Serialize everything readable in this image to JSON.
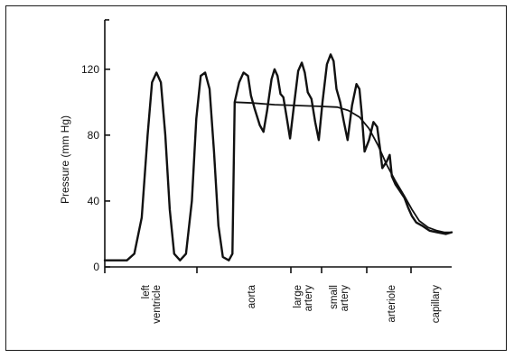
{
  "chart_data": {
    "type": "line",
    "title": "",
    "xlabel": "",
    "ylabel": "Pressure (mm Hg)",
    "ylim": [
      0,
      150
    ],
    "yticks": [
      0,
      40,
      80,
      120
    ],
    "grid": false,
    "regions": [
      {
        "label_lines": [
          "left",
          "ventricle"
        ]
      },
      {
        "label_lines": [
          "aorta"
        ]
      },
      {
        "label_lines": [
          "large",
          "artery"
        ]
      },
      {
        "label_lines": [
          "small",
          "artery"
        ]
      },
      {
        "label_lines": [
          "arteriole"
        ]
      },
      {
        "label_lines": [
          "capillary"
        ]
      }
    ],
    "series": [
      {
        "values": [
          [
            0,
            4
          ],
          [
            3,
            4
          ],
          [
            4,
            8
          ],
          [
            5,
            30
          ],
          [
            5.8,
            80
          ],
          [
            6.4,
            112
          ],
          [
            7,
            118
          ],
          [
            7.6,
            112
          ],
          [
            8.2,
            80
          ],
          [
            8.8,
            35
          ],
          [
            9.4,
            8
          ],
          [
            10.2,
            4
          ],
          [
            11,
            8
          ],
          [
            11.8,
            40
          ],
          [
            12.4,
            90
          ],
          [
            13,
            116
          ],
          [
            13.6,
            118
          ],
          [
            14.2,
            108
          ],
          [
            14.8,
            70
          ],
          [
            15.4,
            25
          ],
          [
            16,
            6
          ],
          [
            16.8,
            4
          ],
          [
            17.3,
            8
          ],
          [
            17.6,
            100
          ],
          [
            18.2,
            112
          ],
          [
            18.8,
            118
          ],
          [
            19.4,
            116
          ],
          [
            19.8,
            104
          ],
          [
            20.3,
            96
          ],
          [
            21,
            86
          ],
          [
            21.5,
            82
          ],
          [
            22,
            95
          ],
          [
            22.6,
            114
          ],
          [
            23,
            120
          ],
          [
            23.4,
            116
          ],
          [
            23.8,
            105
          ],
          [
            24.2,
            103
          ],
          [
            24.6,
            92
          ],
          [
            25.1,
            78
          ],
          [
            25.6,
            97
          ],
          [
            26.2,
            119
          ],
          [
            26.7,
            124
          ],
          [
            27.1,
            118
          ],
          [
            27.5,
            106
          ],
          [
            28,
            102
          ],
          [
            28.5,
            88
          ],
          [
            29,
            77
          ],
          [
            29.5,
            100
          ],
          [
            30.1,
            123
          ],
          [
            30.6,
            129
          ],
          [
            31,
            125
          ],
          [
            31.4,
            108
          ],
          [
            31.9,
            100
          ],
          [
            32.4,
            88
          ],
          [
            32.9,
            77
          ],
          [
            33.5,
            98
          ],
          [
            34.1,
            111
          ],
          [
            34.5,
            108
          ],
          [
            34.8,
            94
          ],
          [
            35.2,
            70
          ],
          [
            35.8,
            77
          ],
          [
            36.4,
            88
          ],
          [
            36.9,
            85
          ],
          [
            37.3,
            72
          ],
          [
            37.6,
            60
          ],
          [
            38.2,
            64
          ],
          [
            38.6,
            68
          ],
          [
            38.9,
            55
          ],
          [
            39.4,
            50
          ],
          [
            40,
            46
          ],
          [
            40.6,
            42
          ],
          [
            41.1,
            36
          ],
          [
            41.6,
            31
          ],
          [
            42.2,
            27
          ],
          [
            43,
            25
          ],
          [
            44,
            22
          ],
          [
            45,
            21
          ],
          [
            46.2,
            20
          ],
          [
            47,
            21
          ]
        ]
      },
      {
        "values": [
          [
            17.6,
            100
          ],
          [
            20,
            99.5
          ],
          [
            23,
            98.5
          ],
          [
            26,
            98
          ],
          [
            29,
            97.5
          ],
          [
            31.5,
            97
          ],
          [
            33,
            95
          ],
          [
            34.5,
            91
          ],
          [
            35.8,
            84
          ],
          [
            37,
            74
          ],
          [
            38.2,
            62
          ],
          [
            39.4,
            52
          ],
          [
            40.6,
            43
          ],
          [
            41.6,
            35
          ],
          [
            42.6,
            28
          ],
          [
            43.8,
            24
          ],
          [
            45,
            22
          ],
          [
            46,
            21
          ],
          [
            47,
            21
          ]
        ]
      }
    ]
  }
}
